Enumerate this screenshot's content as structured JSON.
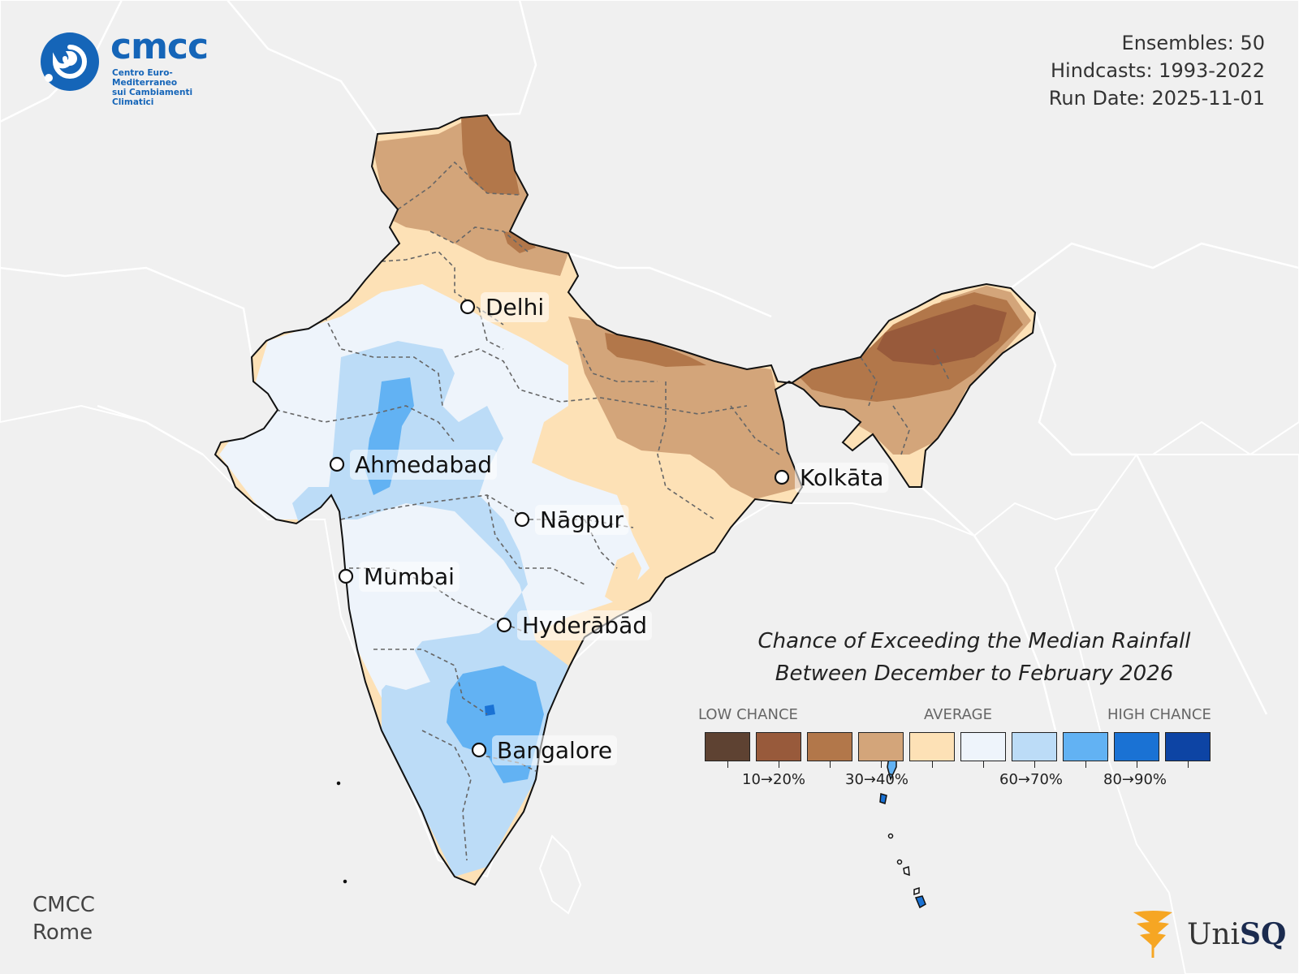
{
  "info": {
    "ensembles": "Ensembles: 50",
    "hindcasts": "Hindcasts: 1993-2022",
    "run_date": "Run Date: 2025-11-01"
  },
  "logo_cmcc": {
    "word": "cmcc",
    "subtitle_1": "Centro Euro-Mediterraneo",
    "subtitle_2": "sui Cambiamenti Climatici"
  },
  "credit": {
    "line1": "CMCC",
    "line2": "Rome"
  },
  "logo_unisq": {
    "uni": "Uni",
    "sq": "SQ"
  },
  "legend": {
    "title_1": "Chance of Exceeding the Median Rainfall",
    "title_2": "Between December to February 2026",
    "low": "LOW CHANCE",
    "average": "AVERAGE",
    "high": "HIGH CHANCE",
    "colors": [
      "#5e4232",
      "#985a3b",
      "#b2774a",
      "#d3a57a",
      "#fde1b6",
      "#eef4fb",
      "#bcdcf7",
      "#62b2f3",
      "#1a72d4",
      "#0d44a4"
    ],
    "tick_labels": [
      "10→20%",
      "30→40%",
      "60→70%",
      "80→90%"
    ]
  },
  "cities": [
    {
      "name": "Delhi"
    },
    {
      "name": "Ahmedabad"
    },
    {
      "name": "Kolkāta"
    },
    {
      "name": "Nāgpur"
    },
    {
      "name": "Mumbai"
    },
    {
      "name": "Hyderābād"
    },
    {
      "name": "Bangalore"
    }
  ]
}
